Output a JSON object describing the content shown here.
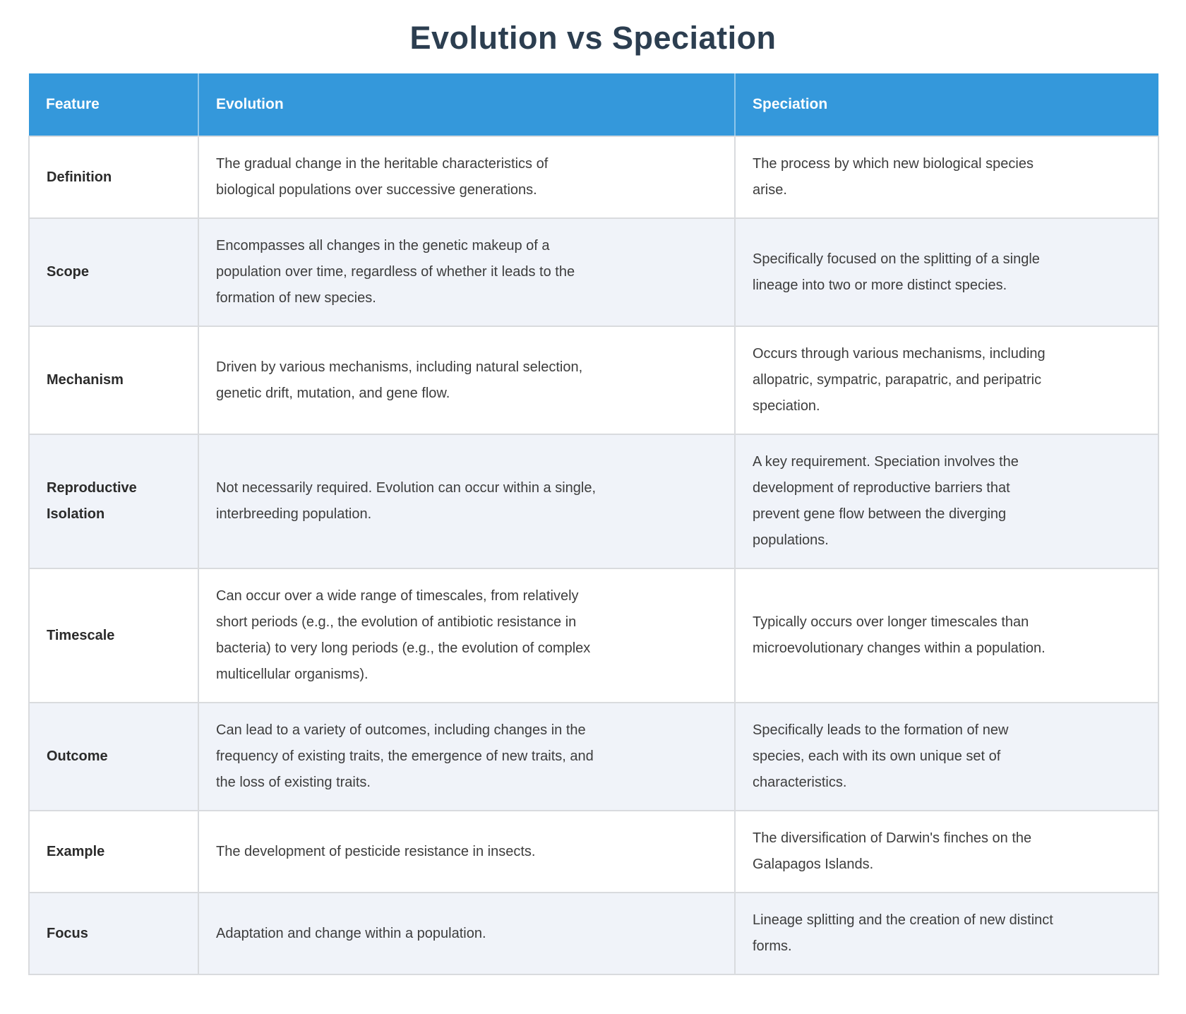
{
  "page": {
    "title": "Evolution vs Speciation"
  },
  "colors": {
    "header_bg": "#3498db",
    "header_text": "#ffffff",
    "title_text": "#2c3e50",
    "row_alt_bg": "#f0f3f9",
    "border": "#d9dbde",
    "body_text": "#3d3d3d",
    "feature_text": "#2b2b2b"
  },
  "table": {
    "columns": [
      {
        "label": "Feature"
      },
      {
        "label": "Evolution"
      },
      {
        "label": "Speciation"
      }
    ],
    "rows": [
      {
        "feature": "Definition",
        "evolution": "The gradual change in the heritable characteristics of\nbiological populations over successive generations.",
        "speciation": "The process by which new biological species\narise."
      },
      {
        "feature": "Scope",
        "evolution": "Encompasses all changes in the genetic makeup of a\npopulation over time, regardless of whether it leads to the\nformation of new species.",
        "speciation": "Specifically focused on the splitting of a single\nlineage into two or more distinct species."
      },
      {
        "feature": "Mechanism",
        "evolution": "Driven by various mechanisms, including natural selection,\ngenetic drift, mutation, and gene flow.",
        "speciation": "Occurs through various mechanisms, including\nallopatric, sympatric, parapatric, and peripatric\nspeciation."
      },
      {
        "feature": "Reproductive Isolation",
        "evolution": "Not necessarily required. Evolution can occur within a single,\ninterbreeding population.",
        "speciation": "A key requirement. Speciation involves the\ndevelopment of reproductive barriers that\nprevent gene flow between the diverging\npopulations."
      },
      {
        "feature": "Timescale",
        "evolution": "Can occur over a wide range of timescales, from relatively\nshort periods (e.g., the evolution of antibiotic resistance in\nbacteria) to very long periods (e.g., the evolution of complex\nmulticellular organisms).",
        "speciation": "Typically occurs over longer timescales than\nmicroevolutionary changes within a population."
      },
      {
        "feature": "Outcome",
        "evolution": "Can lead to a variety of outcomes, including changes in the\nfrequency of existing traits, the emergence of new traits, and\nthe loss of existing traits.",
        "speciation": "Specifically leads to the formation of new\nspecies, each with its own unique set of\ncharacteristics."
      },
      {
        "feature": "Example",
        "evolution": "The development of pesticide resistance in insects.",
        "speciation": "The diversification of Darwin's finches on the\nGalapagos Islands."
      },
      {
        "feature": "Focus",
        "evolution": "Adaptation and change within a population.",
        "speciation": "Lineage splitting and the creation of new distinct\nforms."
      }
    ]
  }
}
